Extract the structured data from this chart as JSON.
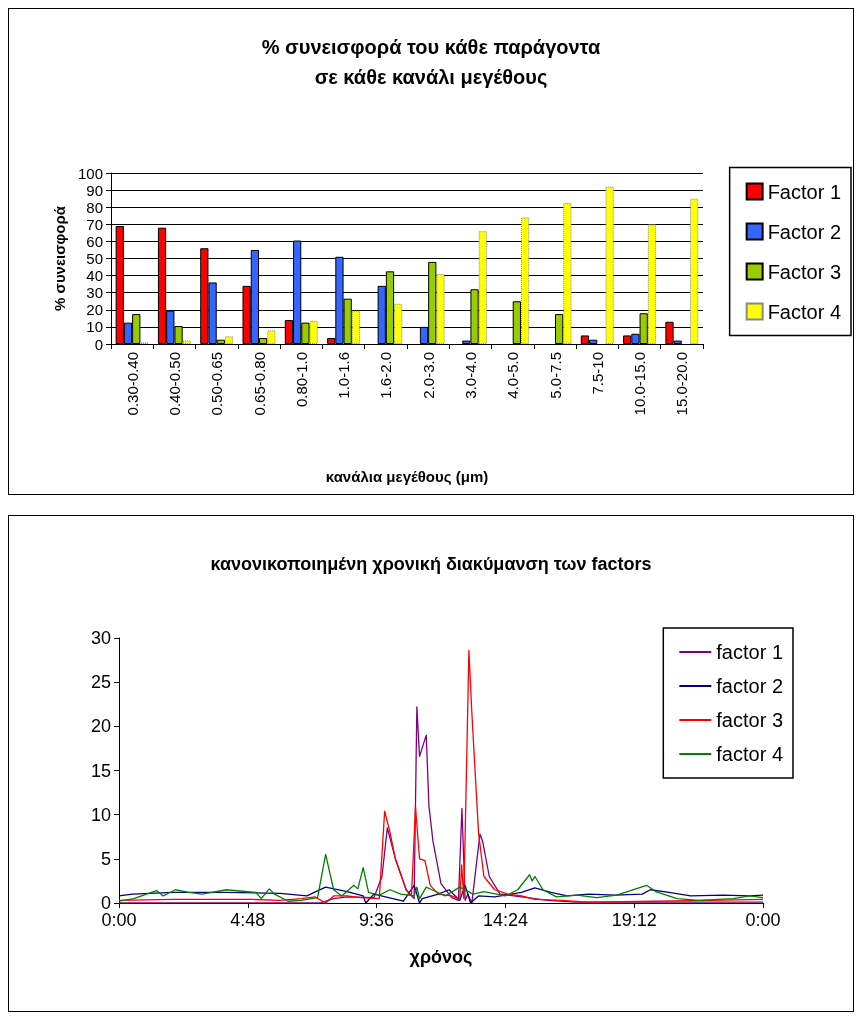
{
  "chart_data": [
    {
      "type": "bar",
      "title": "% συνεισφορά του κάθε παράγοντα\nσε κάθε κανάλι μεγέθους",
      "xlabel": "κανάλια μεγέθους (μm)",
      "ylabel": "% συνεισφορά",
      "categories": [
        "0.30-0.40",
        "0.40-0.50",
        "0.50-0.65",
        "0.65-0.80",
        "0.80-1.0",
        "1.0-1.6",
        "1.6-2.0",
        "2.0-3.0",
        "3.0-4.0",
        "4.0-5.0",
        "5.0-7.5",
        "7.5-10",
        "10.0-15.0",
        "15.0-20.0"
      ],
      "series": [
        {
          "name": "Factor 1",
          "color": "#ff0000",
          "values": [
            69,
            68,
            56,
            34,
            14,
            3.5,
            0,
            0,
            0,
            0,
            0,
            5,
            5,
            13
          ]
        },
        {
          "name": "Factor 2",
          "color": "#3366ff",
          "values": [
            12.5,
            19.5,
            36,
            55,
            60.5,
            51,
            34,
            10,
            2,
            0,
            0,
            2.5,
            6,
            2
          ]
        },
        {
          "name": "Factor 3",
          "color": "#99cc00",
          "values": [
            17.5,
            10.5,
            2.5,
            3.5,
            12.5,
            26.5,
            42.5,
            48,
            32,
            25,
            17.5,
            0,
            18,
            0
          ]
        },
        {
          "name": "Factor 4",
          "color": "#ffff00",
          "values": [
            1,
            2,
            4.5,
            8,
            13.5,
            19.5,
            23.5,
            41,
            66,
            74,
            82.5,
            92,
            70,
            85
          ]
        }
      ],
      "ylim": [
        0,
        100
      ],
      "yticks": [
        0,
        10,
        20,
        30,
        40,
        50,
        60,
        70,
        80,
        90,
        100
      ],
      "grid": "y",
      "legend": "right"
    },
    {
      "type": "line",
      "title": "κανονικοποιημένη χρονική διακύμανση των factors",
      "xlabel": "χρόνος",
      "xlim": [
        0,
        24
      ],
      "xticks": [
        {
          "value": 0,
          "label": "0:00"
        },
        {
          "value": 4.8,
          "label": "4:48"
        },
        {
          "value": 9.6,
          "label": "9:36"
        },
        {
          "value": 14.4,
          "label": "14:24"
        },
        {
          "value": 19.2,
          "label": "19:12"
        },
        {
          "value": 24,
          "label": "0:00"
        }
      ],
      "ylim": [
        0,
        30
      ],
      "yticks": [
        0,
        5,
        10,
        15,
        20,
        25,
        30
      ],
      "grid": false,
      "legend": "top right",
      "marker": "none",
      "line_style": "solid",
      "series": [
        {
          "name": "factor 1",
          "color": "#800080",
          "x": [
            0,
            3,
            6,
            7.5,
            8,
            8.5,
            9.5,
            9.8,
            10,
            10.3,
            10.7,
            11,
            11.1,
            11.2,
            11.45,
            11.55,
            11.7,
            12,
            12.4,
            12.65,
            12.78,
            12.9,
            13,
            13.15,
            13.45,
            13.55,
            13.8,
            14.2,
            15,
            16,
            17,
            20,
            24
          ],
          "values": [
            0,
            0,
            0,
            0,
            0.5,
            0.7,
            0.6,
            3,
            8.5,
            5,
            1.5,
            0.5,
            22.2,
            16.6,
            19,
            11,
            7,
            2.2,
            0.6,
            0.3,
            10.7,
            0.3,
            1,
            0,
            7.8,
            7,
            3,
            1,
            0.7,
            0.3,
            0.1,
            0.1,
            0.1
          ]
        },
        {
          "name": "factor 2",
          "color": "#000080",
          "x": [
            0,
            0.5,
            2,
            4,
            6,
            7,
            7.7,
            8.5,
            9.1,
            9.2,
            9.5,
            10.6,
            11,
            11.2,
            11.3,
            11.9,
            12.3,
            12.7,
            12.9,
            13.1,
            13.4,
            14,
            15,
            15.5,
            16.1,
            16.7,
            17.5,
            18.5,
            19.5,
            19.8,
            20.5,
            21.3,
            22.5,
            23.5,
            24
          ],
          "values": [
            0.8,
            1,
            1.2,
            1.2,
            1.1,
            0.8,
            1.8,
            1.3,
            0.8,
            0,
            1,
            0.2,
            2,
            0,
            0.5,
            1,
            1.5,
            0.3,
            2,
            0,
            0.8,
            0.7,
            1.2,
            1.7,
            1.2,
            0.8,
            1,
            0.9,
            1,
            1.5,
            1.2,
            0.8,
            0.9,
            0.8,
            0.9
          ]
        },
        {
          "name": "factor 3",
          "color": "#ff0000",
          "x": [
            0,
            2,
            5,
            6,
            6.8,
            7.3,
            7.7,
            8,
            8.5,
            9,
            9.7,
            9.9,
            10.1,
            10.3,
            10.7,
            10.9,
            11.05,
            11.2,
            11.4,
            11.6,
            11.9,
            12.4,
            12.7,
            12.77,
            12.85,
            12.97,
            13.04,
            13.15,
            13.4,
            13.6,
            14,
            14.5,
            15,
            15.5,
            16.5,
            17.5,
            20,
            22,
            24
          ],
          "values": [
            0.3,
            0.4,
            0.4,
            0.3,
            0.5,
            0.7,
            0,
            0.8,
            0.8,
            0.6,
            0.5,
            10.4,
            8,
            5,
            1.5,
            0.8,
            10.9,
            5,
            4.8,
            2,
            1,
            0.8,
            0.4,
            4.3,
            0.5,
            18,
            28.6,
            21.5,
            7.9,
            3,
            1.5,
            1,
            0.8,
            0.4,
            0.3,
            0.1,
            0.2,
            0.3,
            0.4
          ]
        },
        {
          "name": "factor 4",
          "color": "#008000",
          "x": [
            0,
            0.55,
            1.4,
            1.65,
            2.1,
            2.6,
            3.1,
            4,
            4.7,
            5.1,
            5.3,
            5.6,
            5.8,
            6.3,
            6.8,
            7.4,
            7.7,
            8,
            8.3,
            8.75,
            8.9,
            9.1,
            9.3,
            9.7,
            10.1,
            10.5,
            11,
            11.1,
            11.2,
            11.45,
            11.66,
            12.15,
            12.7,
            13.2,
            13.6,
            14.4,
            14.86,
            15.3,
            15.4,
            15.5,
            15.8,
            16.3,
            17.07,
            17.8,
            18.55,
            19.66,
            20,
            20.8,
            21.6,
            22.9,
            23.5,
            24
          ],
          "values": [
            0.2,
            0.5,
            1.4,
            0.8,
            1.5,
            1.2,
            1,
            1.5,
            1.3,
            1.2,
            0.5,
            1.6,
            1,
            0.2,
            0.3,
            0.6,
            5.5,
            1.5,
            0.8,
            2,
            1.6,
            4,
            1.2,
            0.9,
            1.5,
            1,
            0.8,
            1.8,
            0.5,
            1.8,
            1.5,
            0.8,
            1.8,
            1,
            1.3,
            0.8,
            1.5,
            3.2,
            2.5,
            3,
            1.5,
            0.7,
            0.9,
            0.6,
            0.9,
            2,
            1.3,
            0.5,
            0.3,
            0.5,
            0.8,
            0.6
          ]
        }
      ]
    }
  ]
}
